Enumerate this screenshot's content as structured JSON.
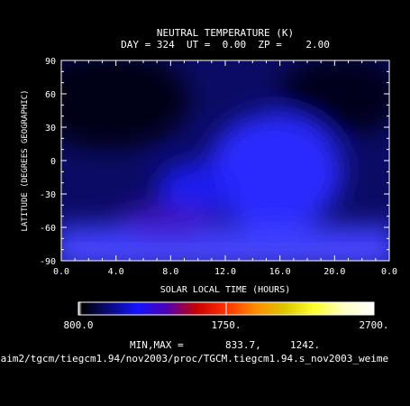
{
  "chart_data": {
    "type": "heatmap",
    "title": "NEUTRAL TEMPERATURE (K)",
    "subtitle": "DAY = 324  UT =  0.00  ZP =    2.00",
    "xlabel": "SOLAR LOCAL TIME (HOURS)",
    "ylabel": "LATITUDE (DEGREES GEOGRAPHIC)",
    "xlim": [
      0,
      24
    ],
    "ylim": [
      -90,
      90
    ],
    "x_tick_labels": [
      "0.0",
      "4.0",
      "8.0",
      "12.0",
      "16.0",
      "20.0",
      "0.0"
    ],
    "y_tick_labels": [
      "90",
      "60",
      "30",
      "0",
      "-30",
      "-60",
      "-90"
    ],
    "colorbar": {
      "range": [
        800,
        2700
      ],
      "tick_labels": [
        "800.0",
        "1750.",
        "2700."
      ],
      "colors": [
        "#ffffff",
        "#000000",
        "#1414ff",
        "#5000b4",
        "#c80000",
        "#ff3200",
        "#ff8c00",
        "#dcc800",
        "#ffff32",
        "#ffffc8",
        "#ffffff"
      ]
    },
    "minmax_label": "MIN,MAX =",
    "min_value": "833.7,",
    "max_value": "1242.",
    "field_summary": {
      "min": 833.7,
      "max": 1242,
      "cool_region": "northern mid-latitudes night side",
      "warm_region": "southern high latitudes, dayside bulge near 14-16 LT"
    },
    "file_path": "/aim2/tgcm/tiegcm1.94/nov2003/proc/TGCM.tiegcm1.94.s_nov2003_weime"
  }
}
